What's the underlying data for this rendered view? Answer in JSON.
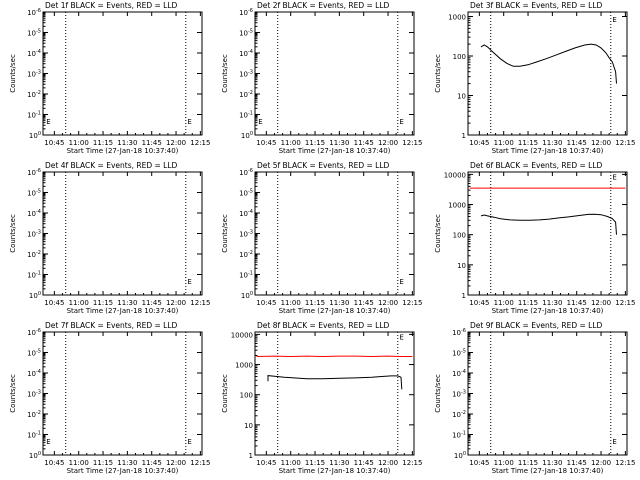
{
  "chart_data": [
    {
      "type": "line",
      "title": "Det 1f BLACK = Events, RED = LLD",
      "xlabel": "Start Time (27-Jan-18 10:37:40)",
      "ylabel": "Counts/sec",
      "xticks": [
        "10:45",
        "11:00",
        "11:15",
        "11:30",
        "11:45",
        "12:00",
        "12:15"
      ],
      "xlim_minutes": [
        38,
        136
      ],
      "y_scale": "log",
      "yticks": [
        "10^0",
        "10^-1",
        "10^-2",
        "10^-3",
        "10^-4",
        "10^-5",
        "10^-6"
      ],
      "ylim": [
        1,
        1e-06
      ],
      "vlines_minutes": [
        52,
        126
      ],
      "markers": [
        {
          "text": "E",
          "x_minutes": 40,
          "y_frac": 0.12
        },
        {
          "text": "E",
          "x_minutes": 127,
          "y_frac": 0.12
        }
      ],
      "series": []
    },
    {
      "type": "line",
      "title": "Det 2f BLACK = Events, RED = LLD",
      "xlabel": "Start Time (27-Jan-18 10:37:40)",
      "ylabel": "Counts/sec",
      "xticks": [
        "10:45",
        "11:00",
        "11:15",
        "11:30",
        "11:45",
        "12:00",
        "12:15"
      ],
      "xlim_minutes": [
        38,
        136
      ],
      "y_scale": "log",
      "yticks": [
        "10^0",
        "10^-1",
        "10^-2",
        "10^-3",
        "10^-4",
        "10^-5",
        "10^-6"
      ],
      "ylim": [
        1,
        1e-06
      ],
      "vlines_minutes": [
        52,
        126
      ],
      "markers": [
        {
          "text": "E",
          "x_minutes": 40,
          "y_frac": 0.12
        },
        {
          "text": "E",
          "x_minutes": 127,
          "y_frac": 0.12
        }
      ],
      "series": []
    },
    {
      "type": "line",
      "title": "Det 3f BLACK = Events, RED = LLD",
      "xlabel": "Start Time (27-Jan-18 10:37:40)",
      "ylabel": "Counts/sec",
      "xticks": [
        "10:45",
        "11:00",
        "11:15",
        "11:30",
        "11:45",
        "12:00",
        "12:15"
      ],
      "xlim_minutes": [
        38,
        136
      ],
      "y_scale": "log",
      "yticks": [
        "1",
        "10",
        "100",
        "1000"
      ],
      "ylim": [
        1,
        1300
      ],
      "vlines_minutes": [
        52,
        126
      ],
      "markers": [
        {
          "text": "E",
          "x_minutes": 127,
          "y_frac": 0.95
        }
      ],
      "series": [
        {
          "color": "#000000",
          "x_minutes": [
            46,
            48,
            50,
            53,
            58,
            62,
            66,
            70,
            75,
            80,
            86,
            92,
            98,
            104,
            110,
            114,
            117,
            120,
            123,
            125,
            127,
            129,
            129.5
          ],
          "y": [
            170,
            190,
            170,
            130,
            85,
            65,
            55,
            55,
            60,
            70,
            85,
            105,
            130,
            160,
            190,
            200,
            190,
            160,
            120,
            90,
            70,
            40,
            20
          ]
        }
      ]
    },
    {
      "type": "line",
      "title": "Det 4f BLACK = Events, RED = LLD",
      "xlabel": "Start Time (27-Jan-18 10:37:40)",
      "ylabel": "Counts/sec",
      "xticks": [
        "10:45",
        "11:00",
        "11:15",
        "11:30",
        "11:45",
        "12:00",
        "12:15"
      ],
      "xlim_minutes": [
        38,
        136
      ],
      "y_scale": "log",
      "yticks": [
        "10^0",
        "10^-1",
        "10^-2",
        "10^-3",
        "10^-4",
        "10^-5",
        "10^-6"
      ],
      "ylim": [
        1,
        1e-06
      ],
      "vlines_minutes": [
        52,
        126
      ],
      "markers": [
        {
          "text": "E",
          "x_minutes": 127,
          "y_frac": 0.12
        }
      ],
      "series": []
    },
    {
      "type": "line",
      "title": "Det 5f BLACK = Events, RED = LLD",
      "xlabel": "Start Time (27-Jan-18 10:37:40)",
      "ylabel": "Counts/sec",
      "xticks": [
        "10:45",
        "11:00",
        "11:15",
        "11:30",
        "11:45",
        "12:00",
        "12:15"
      ],
      "xlim_minutes": [
        38,
        136
      ],
      "y_scale": "log",
      "yticks": [
        "10^0",
        "10^-1",
        "10^-2",
        "10^-3",
        "10^-4",
        "10^-5",
        "10^-6"
      ],
      "ylim": [
        1,
        1e-06
      ],
      "vlines_minutes": [
        52,
        126
      ],
      "markers": [
        {
          "text": "E",
          "x_minutes": 127,
          "y_frac": 0.12
        }
      ],
      "series": []
    },
    {
      "type": "line",
      "title": "Det 6f BLACK = Events, RED = LLD",
      "xlabel": "Start Time (27-Jan-18 10:37:40)",
      "ylabel": "Counts/sec",
      "xticks": [
        "10:45",
        "11:00",
        "11:15",
        "11:30",
        "11:45",
        "12:00",
        "12:15"
      ],
      "xlim_minutes": [
        38,
        136
      ],
      "y_scale": "log",
      "yticks": [
        "1",
        "10",
        "100",
        "1000",
        "10000"
      ],
      "ylim": [
        1,
        12000
      ],
      "vlines_minutes": [
        52,
        126
      ],
      "markers": [
        {
          "text": "E",
          "x_minutes": 127,
          "y_frac": 0.97
        }
      ],
      "series": [
        {
          "color": "#ff0000",
          "x_minutes": [
            39,
            135
          ],
          "y": [
            3500,
            3500
          ]
        },
        {
          "color": "#000000",
          "x_minutes": [
            46,
            48,
            50,
            54,
            58,
            64,
            70,
            76,
            82,
            88,
            94,
            100,
            106,
            112,
            116,
            120,
            124,
            127,
            129,
            129.5
          ],
          "y": [
            420,
            450,
            420,
            380,
            340,
            310,
            300,
            300,
            310,
            330,
            360,
            390,
            430,
            470,
            480,
            460,
            400,
            340,
            260,
            100
          ]
        }
      ]
    },
    {
      "type": "line",
      "title": "Det 7f BLACK = Events, RED = LLD",
      "xlabel": "Start Time (27-Jan-18 10:37:40)",
      "ylabel": "Counts/sec",
      "xticks": [
        "10:45",
        "11:00",
        "11:15",
        "11:30",
        "11:45",
        "12:00",
        "12:15"
      ],
      "xlim_minutes": [
        38,
        136
      ],
      "y_scale": "log",
      "yticks": [
        "10^0",
        "10^-1",
        "10^-2",
        "10^-3",
        "10^-4",
        "10^-5",
        "10^-6"
      ],
      "ylim": [
        1,
        1e-06
      ],
      "vlines_minutes": [
        52,
        126
      ],
      "markers": [
        {
          "text": "E",
          "x_minutes": 40,
          "y_frac": 0.12
        },
        {
          "text": "E",
          "x_minutes": 127,
          "y_frac": 0.12
        }
      ],
      "series": []
    },
    {
      "type": "line",
      "title": "Det 8f BLACK = Events, RED = LLD",
      "xlabel": "Start Time (27-Jan-18 10:37:40)",
      "ylabel": "Counts/sec",
      "xticks": [
        "10:45",
        "11:00",
        "11:15",
        "11:30",
        "11:45",
        "12:00",
        "12:15"
      ],
      "xlim_minutes": [
        38,
        136
      ],
      "y_scale": "log",
      "yticks": [
        "1",
        "10",
        "100",
        "1000",
        "10000"
      ],
      "ylim": [
        1,
        12000
      ],
      "vlines_minutes": [
        52,
        126
      ],
      "markers": [
        {
          "text": "E",
          "x_minutes": 127,
          "y_frac": 0.97
        }
      ],
      "series": [
        {
          "color": "#ff0000",
          "x_minutes": [
            39,
            50,
            60,
            70,
            80,
            90,
            100,
            110,
            120,
            128,
            135
          ],
          "y": [
            1850,
            1900,
            1850,
            1900,
            1850,
            1900,
            1900,
            1850,
            1900,
            1850,
            1850
          ]
        },
        {
          "color": "#000000",
          "x_minutes": [
            46,
            46,
            50,
            56,
            62,
            70,
            80,
            90,
            100,
            110,
            116,
            122,
            126,
            128,
            128.5
          ],
          "y": [
            280,
            430,
            410,
            380,
            360,
            340,
            340,
            350,
            360,
            380,
            400,
            420,
            420,
            380,
            150
          ]
        }
      ]
    },
    {
      "type": "line",
      "title": "Det 9f BLACK = Events, RED = LLD",
      "xlabel": "Start Time (27-Jan-18 10:37:40)",
      "ylabel": "Counts/sec",
      "xticks": [
        "10:45",
        "11:00",
        "11:15",
        "11:30",
        "11:45",
        "12:00",
        "12:15"
      ],
      "xlim_minutes": [
        38,
        136
      ],
      "y_scale": "log",
      "yticks": [
        "10^0",
        "10^-1",
        "10^-2",
        "10^-3",
        "10^-4",
        "10^-5",
        "10^-6"
      ],
      "ylim": [
        1,
        1e-06
      ],
      "vlines_minutes": [
        52,
        126
      ],
      "markers": [
        {
          "text": "E",
          "x_minutes": 127,
          "y_frac": 0.12
        }
      ],
      "series": []
    }
  ]
}
